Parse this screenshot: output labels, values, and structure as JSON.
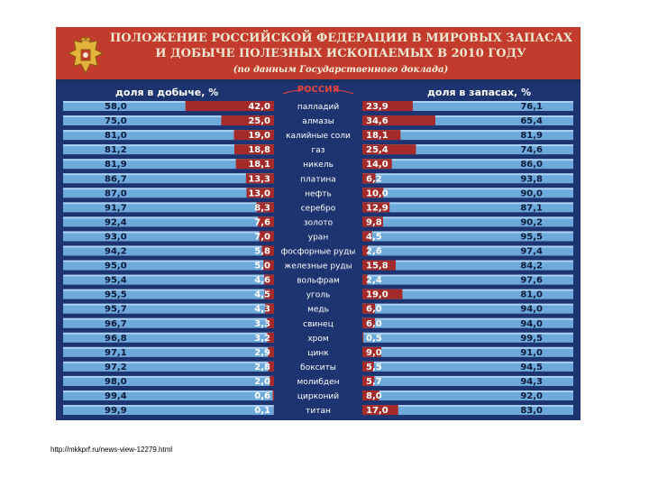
{
  "header": {
    "title_line1": "ПОЛОЖЕНИЕ РОССИЙСКОЙ ФЕДЕРАЦИИ В МИРОВЫХ ЗАПАСАХ",
    "title_line2": "И ДОБЫЧЕ ПОЛЕЗНЫХ ИСКОПАЕМЫХ В 2010 ГОДУ",
    "subtitle": "(по данным Государственного доклада)"
  },
  "footer": {
    "source_url": "http://mkkprf.ru/news-view-12279.html"
  },
  "colors": {
    "header_red": "#c23b2c",
    "background_navy": "#1d3470",
    "bar_red": "#a52a2a",
    "bar_blue": "#6ea9dc"
  },
  "chart_data": {
    "type": "bar",
    "left_label": "доля в добыче, %",
    "right_label": "доля в запасах, %",
    "center_label": "РОССИЯ",
    "categories": [
      "палладий",
      "алмазы",
      "калийные соли",
      "газ",
      "никель",
      "платина",
      "нефть",
      "серебро",
      "золото",
      "уран",
      "фосфорные руды",
      "железные руды",
      "вольфрам",
      "уголь",
      "медь",
      "свинец",
      "хром",
      "цинк",
      "бокситы",
      "молибден",
      "цирконий",
      "титан"
    ],
    "series": [
      {
        "name": "доля в добыче, %",
        "side": "left",
        "russia": [
          "42,0",
          "25,0",
          "19,0",
          "18,8",
          "18,1",
          "13,3",
          "13,0",
          "8,3",
          "7,6",
          "7,0",
          "5,8",
          "5,0",
          "4,6",
          "4,5",
          "4,3",
          "3,3",
          "3,2",
          "2,9",
          "2,8",
          "2,0",
          "0,6",
          "0,1"
        ],
        "rest": [
          "58,0",
          "75,0",
          "81,0",
          "81,2",
          "81,9",
          "86,7",
          "87,0",
          "91,7",
          "92,4",
          "93,0",
          "94,2",
          "95,0",
          "95,4",
          "95,5",
          "95,7",
          "96,7",
          "96,8",
          "97,1",
          "97,2",
          "98,0",
          "99,4",
          "99,9"
        ]
      },
      {
        "name": "доля в запасах, %",
        "side": "right",
        "russia": [
          "23,9",
          "34,6",
          "18,1",
          "25,4",
          "14,0",
          "6,2",
          "10,0",
          "12,9",
          "9,8",
          "4,5",
          "2,6",
          "15,8",
          "2,4",
          "19,0",
          "6,0",
          "6,0",
          "0,5",
          "9,0",
          "5,5",
          "5,7",
          "8,0",
          "17,0"
        ],
        "rest": [
          "76,1",
          "65,4",
          "81,9",
          "74,6",
          "86,0",
          "93,8",
          "90,0",
          "87,1",
          "90,2",
          "95,5",
          "97,4",
          "84,2",
          "97,6",
          "81,0",
          "94,0",
          "94,0",
          "99,5",
          "91,0",
          "94,5",
          "94,3",
          "92,0",
          "83,0"
        ]
      }
    ]
  }
}
